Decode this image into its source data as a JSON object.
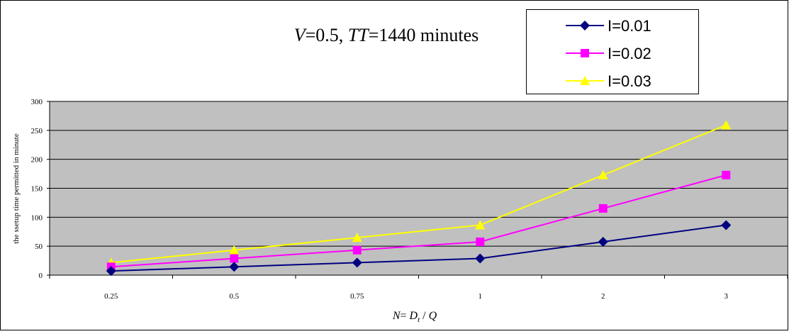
{
  "chart_data": {
    "type": "line",
    "title_parts": {
      "v_symbol": "V",
      "v_value": "=0.5, ",
      "tt_symbol": "TT",
      "tt_value": "=1440 minutes"
    },
    "xlabel_parts": {
      "n": "N",
      "eq": "= ",
      "d": "D",
      "sub": "t",
      "rest": " / ",
      "q": "Q"
    },
    "ylabel": "the ssetup time permitted in minute",
    "categories": [
      "0.25",
      "0.5",
      "0.75",
      "1",
      "2",
      "3"
    ],
    "ylim": [
      0,
      300
    ],
    "yticks": [
      "0",
      "50",
      "100",
      "150",
      "200",
      "250",
      "300"
    ],
    "grid": true,
    "legend_position": "top-right",
    "series": [
      {
        "name": "I=0.01",
        "values": [
          7.2,
          14.4,
          21.6,
          28.8,
          57.6,
          86.4
        ],
        "color": "#000080",
        "marker": "diamond"
      },
      {
        "name": "I=0.02",
        "values": [
          14.4,
          28.8,
          43.2,
          57.6,
          115.2,
          172.8
        ],
        "color": "#ff00ff",
        "marker": "square"
      },
      {
        "name": "I=0.03",
        "values": [
          21.6,
          43.2,
          64.8,
          86.4,
          172.8,
          259.2
        ],
        "color": "#ffff00",
        "marker": "triangle"
      }
    ],
    "plot_background": "#c0c0c0"
  }
}
